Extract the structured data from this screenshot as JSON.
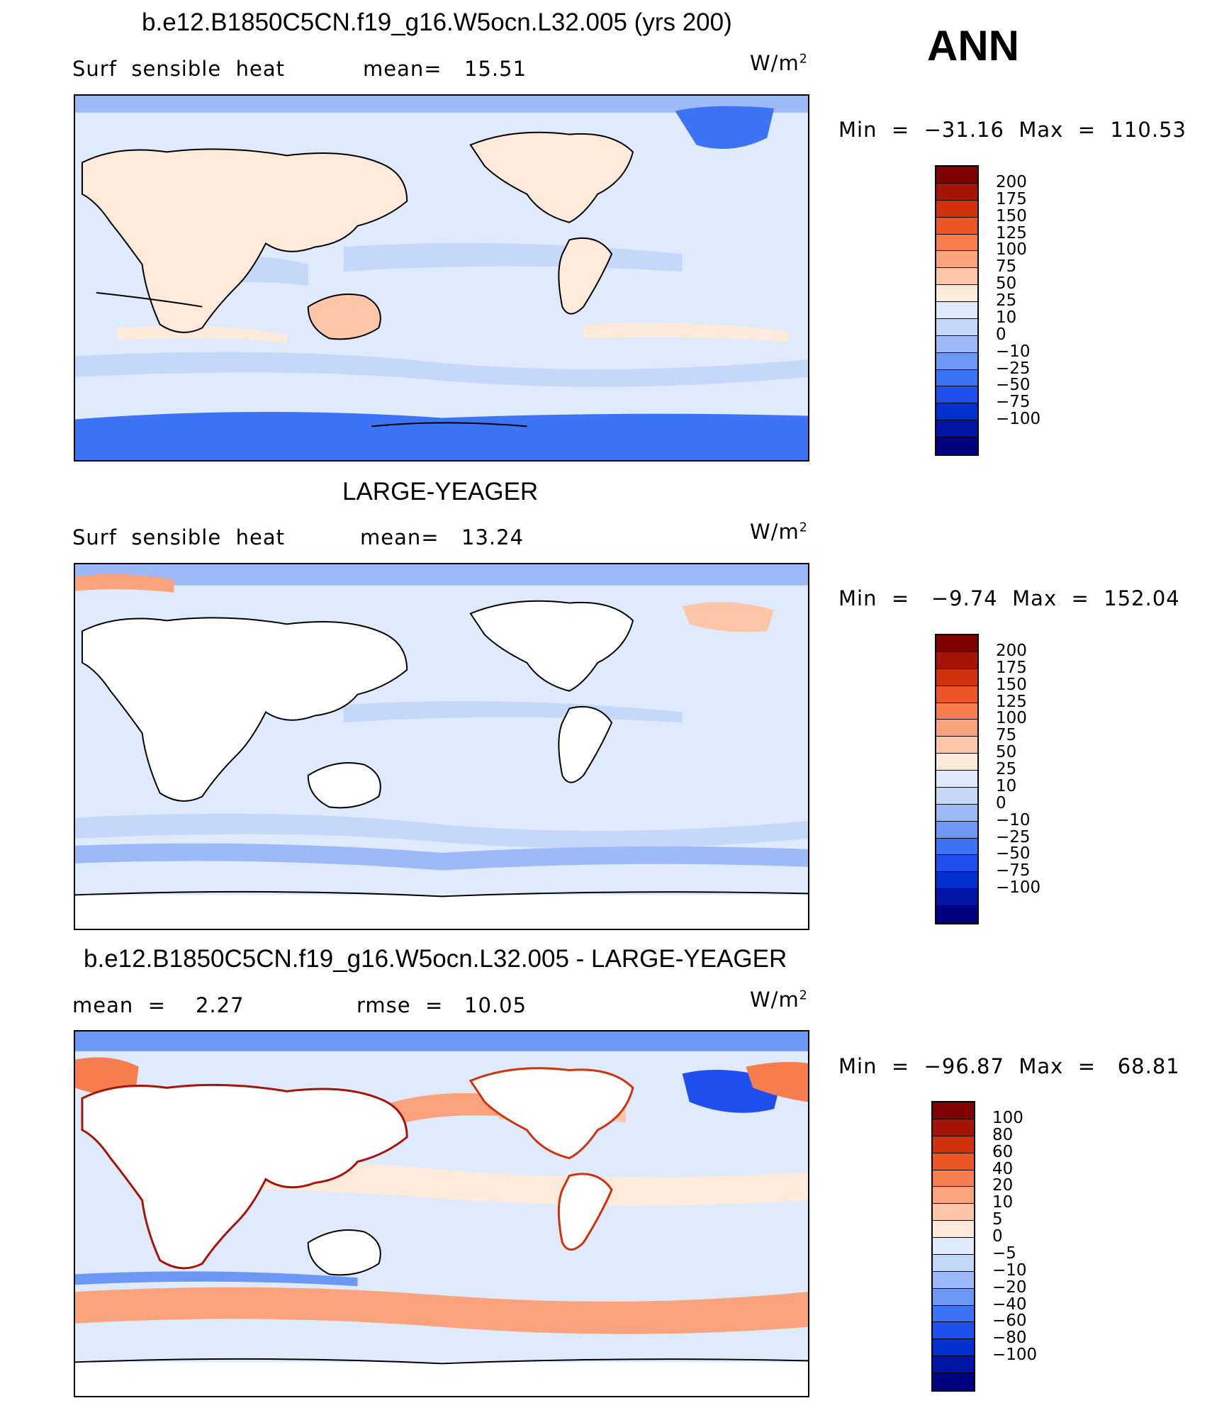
{
  "season": "ANN",
  "units_label": "W/m",
  "units_exp": "2",
  "colors": {
    "main_scale": [
      "#00007f",
      "#0015a6",
      "#0030d0",
      "#1f4fef",
      "#3d73f5",
      "#6c97f5",
      "#9cbaf7",
      "#c5d8fa",
      "#dfeafd",
      "#fdeadb",
      "#fcc6a7",
      "#fba37c",
      "#f67d50",
      "#ec5526",
      "#d1320e",
      "#a51406",
      "#7f0000"
    ],
    "diff_scale": [
      "#00007f",
      "#0015a6",
      "#0030d0",
      "#1f4fef",
      "#3d73f5",
      "#6c97f5",
      "#9cbaf7",
      "#c5d8fa",
      "#dfeafd",
      "#fdeadb",
      "#fcc6a7",
      "#fba37c",
      "#f67d50",
      "#ec5526",
      "#d1320e",
      "#a51406",
      "#7f0000"
    ],
    "land": "#ffffff"
  },
  "panels": [
    {
      "title": "b.e12.B1850C5CN.f19_g16.W5ocn.L32.005 (yrs 200)",
      "variable": "Surf  sensible  heat",
      "stat1_label": "mean=",
      "stat1_value": "15.51",
      "stat2_label": "",
      "stat2_value": "",
      "minmax": "Min  =  −31.16  Max  =  110.53",
      "ticks": [
        "200",
        "175",
        "150",
        "125",
        "100",
        "75",
        "50",
        "25",
        "10",
        "0",
        "−10",
        "−25",
        "−50",
        "−75",
        "−100"
      ]
    },
    {
      "title": "LARGE-YEAGER",
      "variable": "Surf  sensible  heat",
      "stat1_label": "mean=",
      "stat1_value": "13.24",
      "stat2_label": "",
      "stat2_value": "",
      "minmax": "Min  =   −9.74  Max  =  152.04",
      "ticks": [
        "200",
        "175",
        "150",
        "125",
        "100",
        "75",
        "50",
        "25",
        "10",
        "0",
        "−10",
        "−25",
        "−50",
        "−75",
        "−100"
      ]
    },
    {
      "title": "b.e12.B1850C5CN.f19_g16.W5ocn.L32.005 - LARGE-YEAGER",
      "variable": "",
      "stat1_label": "mean  =",
      "stat1_value": "2.27",
      "stat2_label": "rmse  =",
      "stat2_value": "10.05",
      "minmax": "Min  =  −96.87  Max  =   68.81",
      "ticks": [
        "100",
        "80",
        "60",
        "40",
        "20",
        "10",
        "5",
        "0",
        "−5",
        "−10",
        "−20",
        "−40",
        "−60",
        "−80",
        "−100"
      ]
    }
  ],
  "chart_data": [
    {
      "type": "heatmap",
      "title": "b.e12.B1850C5CN.f19_g16.W5ocn.L32.005 (yrs 200)",
      "variable": "Surf sensible heat",
      "units": "W/m2",
      "mean": 15.51,
      "min": -31.16,
      "max": 110.53,
      "contour_levels": [
        -100,
        -75,
        -50,
        -25,
        -10,
        0,
        10,
        25,
        50,
        75,
        100,
        125,
        150,
        175,
        200
      ],
      "land_colored": true
    },
    {
      "type": "heatmap",
      "title": "LARGE-YEAGER",
      "variable": "Surf sensible heat",
      "units": "W/m2",
      "mean": 13.24,
      "min": -9.74,
      "max": 152.04,
      "contour_levels": [
        -100,
        -75,
        -50,
        -25,
        -10,
        0,
        10,
        25,
        50,
        75,
        100,
        125,
        150,
        175,
        200
      ],
      "land_colored": false
    },
    {
      "type": "heatmap",
      "title": "b.e12.B1850C5CN.f19_g16.W5ocn.L32.005 - LARGE-YEAGER",
      "units": "W/m2",
      "mean": 2.27,
      "rmse": 10.05,
      "min": -96.87,
      "max": 68.81,
      "contour_levels": [
        -100,
        -80,
        -60,
        -40,
        -20,
        -10,
        -5,
        0,
        5,
        10,
        20,
        40,
        60,
        80,
        100
      ],
      "land_colored": false
    }
  ]
}
